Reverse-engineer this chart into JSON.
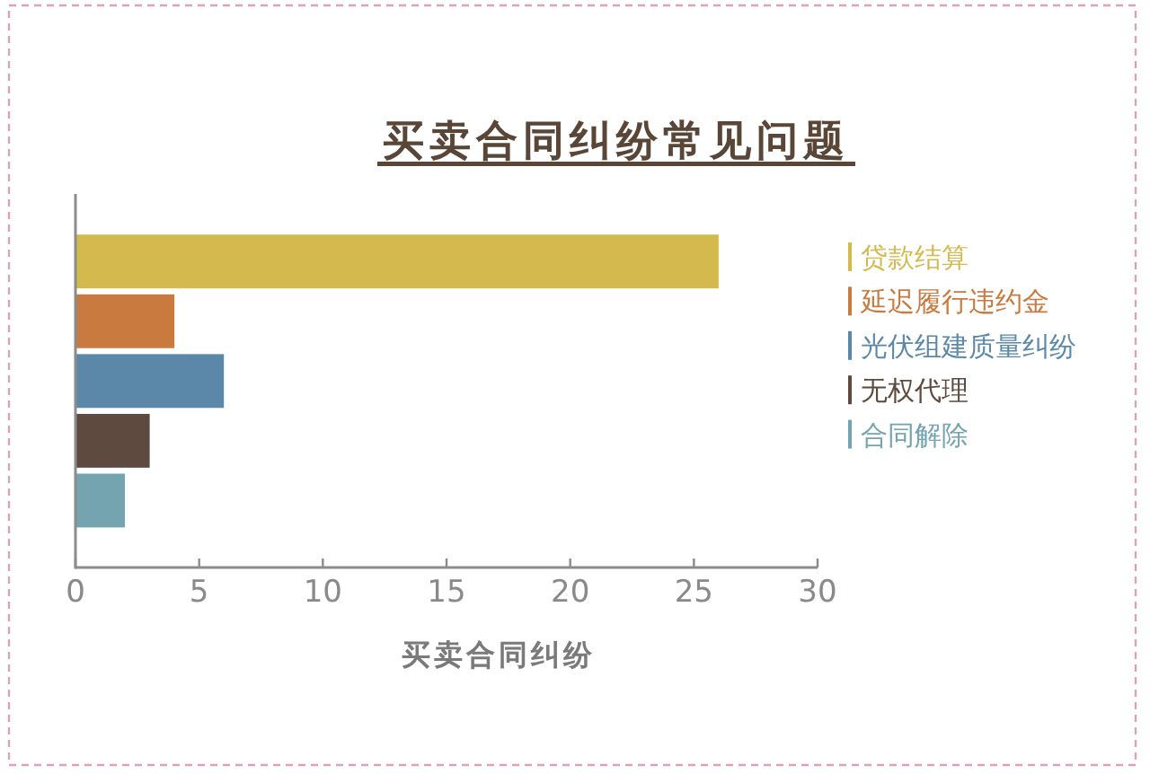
{
  "chart_data": {
    "type": "bar",
    "orientation": "horizontal",
    "title": "买卖合同纠纷常见问题",
    "xlabel": "买卖合同纠纷",
    "categories": [
      null,
      null,
      null,
      null,
      null
    ],
    "series": [
      {
        "name": "贷款结算",
        "color": "#d4b94e",
        "values": [
          26,
          null,
          null,
          null,
          null
        ]
      },
      {
        "name": "延迟履行违约金",
        "color": "#c97a3f",
        "values": [
          null,
          4,
          null,
          null,
          null
        ]
      },
      {
        "name": "光伏组建质量纠纷",
        "color": "#5b88a8",
        "values": [
          null,
          null,
          6,
          null,
          null
        ]
      },
      {
        "name": "无权代理",
        "color": "#5e4a3e",
        "values": [
          null,
          null,
          null,
          3,
          null
        ]
      },
      {
        "name": "合同解除",
        "color": "#74a4b0",
        "values": [
          null,
          null,
          null,
          null,
          2
        ]
      }
    ],
    "xlim": [
      0,
      30
    ],
    "xticks": [
      0,
      5,
      10,
      15,
      20,
      25,
      30
    ],
    "legend": "right",
    "grid": false
  }
}
